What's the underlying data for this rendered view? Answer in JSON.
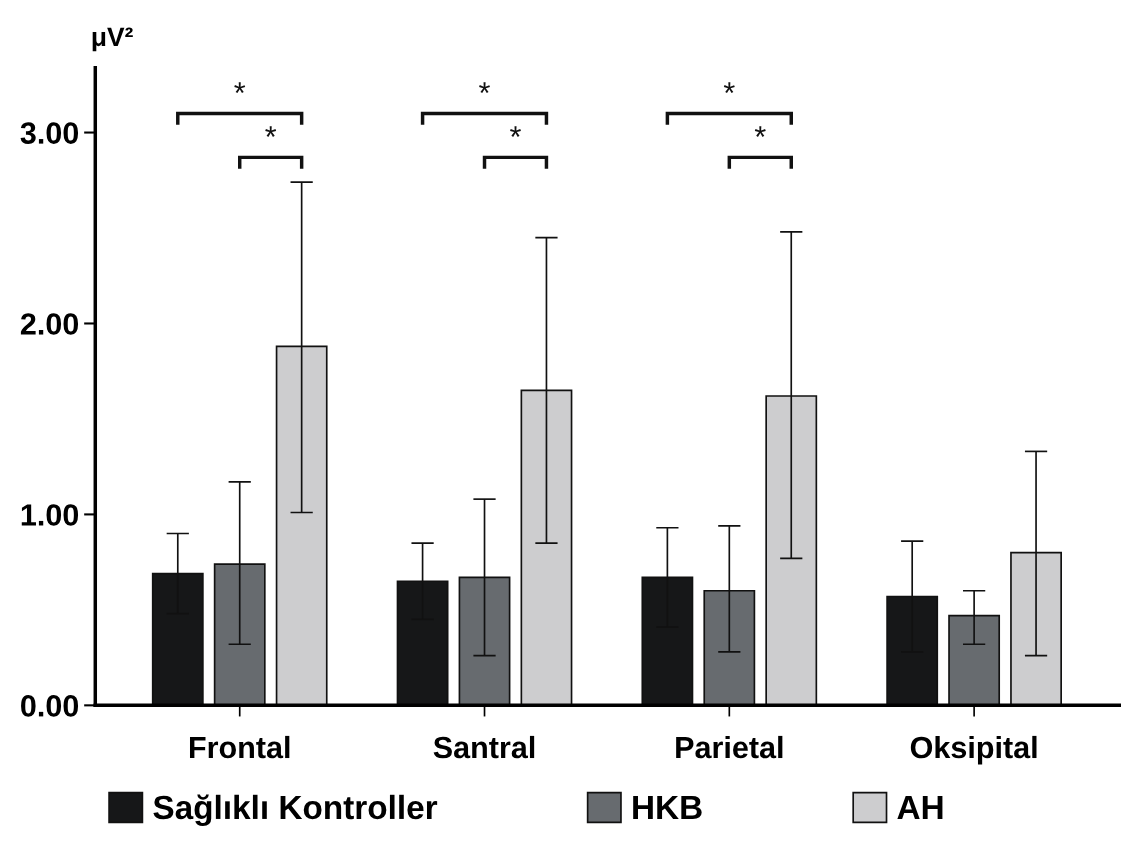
{
  "chart_data": {
    "type": "bar",
    "ylabel": "μV²",
    "categories": [
      "Frontal",
      "Santral",
      "Parietal",
      "Oksipital"
    ],
    "series": [
      {
        "name": "Sağlıklı Kontroller",
        "color": "#161718",
        "values": [
          0.69,
          0.65,
          0.67,
          0.57
        ],
        "errors": [
          0.21,
          0.2,
          0.26,
          0.29
        ]
      },
      {
        "name": "HKB",
        "color": "#676b6f",
        "values": [
          0.74,
          0.67,
          0.6,
          0.47
        ],
        "errors": [
          [
            0.32,
            1.17
          ],
          [
            0.26,
            1.08
          ],
          [
            0.28,
            0.94
          ],
          [
            0.32,
            0.6
          ]
        ]
      },
      {
        "name": "AH",
        "color": "#cdcdcf",
        "values": [
          1.88,
          1.65,
          1.62,
          0.8
        ],
        "errors": [
          [
            1.01,
            2.74
          ],
          [
            0.85,
            2.45
          ],
          [
            0.77,
            2.48
          ],
          [
            0.26,
            1.33
          ]
        ]
      }
    ],
    "ylim": [
      0,
      3.34
    ],
    "yticks": [
      {
        "value": 0,
        "label": "0.00"
      },
      {
        "value": 1,
        "label": "1.00"
      },
      {
        "value": 2,
        "label": "2.00"
      },
      {
        "value": 3,
        "label": "3.00"
      }
    ],
    "annotations": [
      "*",
      "*",
      "*",
      "*",
      "*",
      "*"
    ],
    "grid": false,
    "legend": "bottom"
  }
}
